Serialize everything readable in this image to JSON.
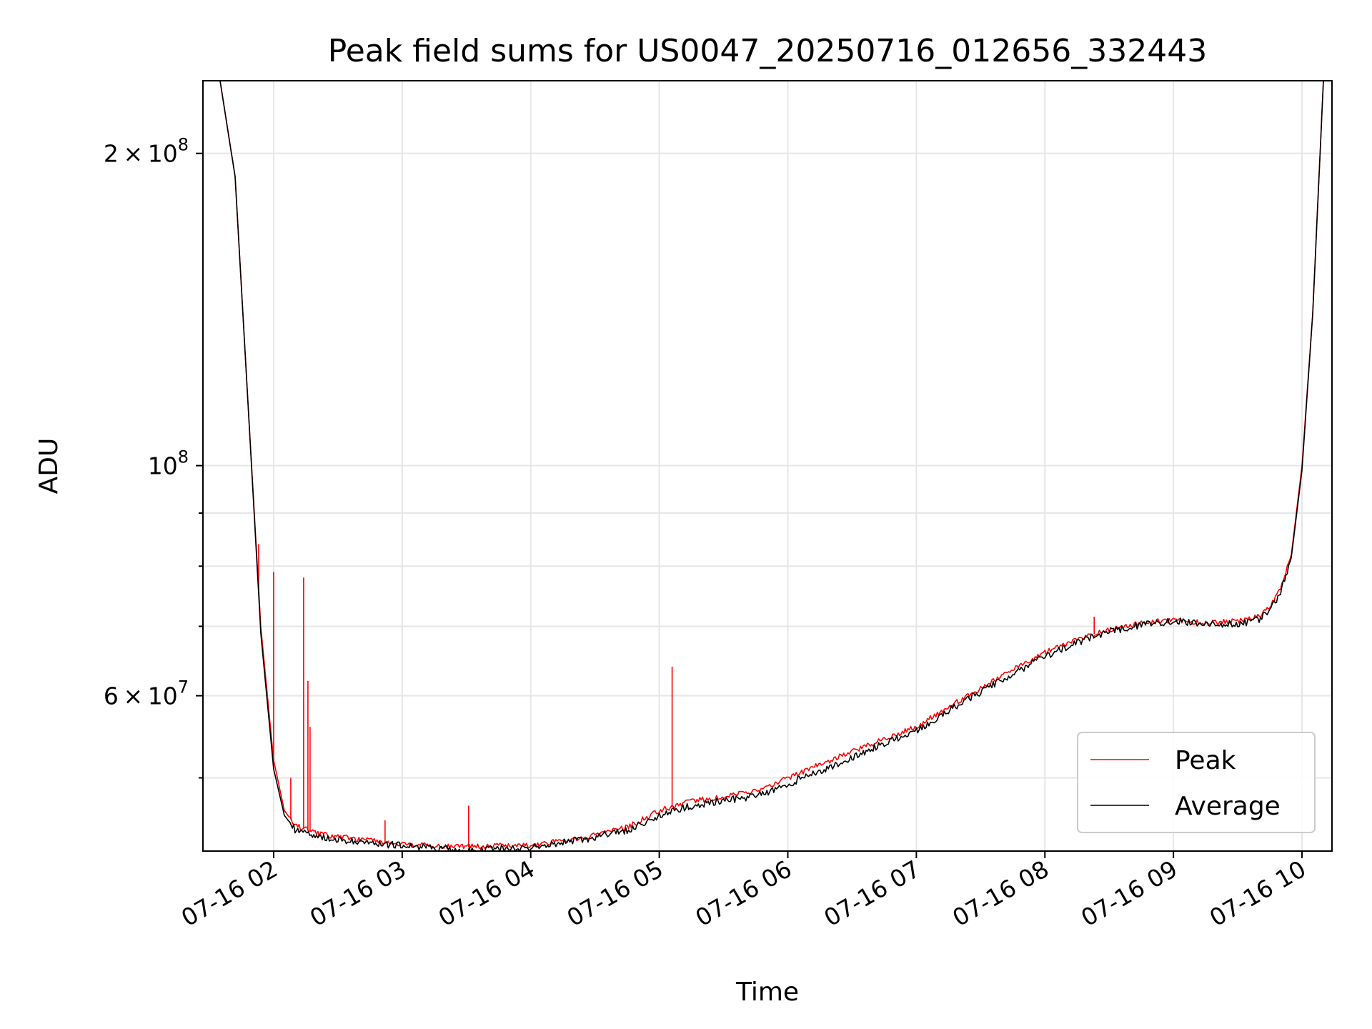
{
  "chart_data": {
    "type": "line",
    "title": "Peak field sums for US0047_20250716_012656_332443",
    "xlabel": "Time",
    "ylabel": "ADU",
    "yscale": "log",
    "grid": true,
    "legend_position": "bottom-right",
    "xlim": [
      "2025-07-16 01:27",
      "2025-07-16 10:14"
    ],
    "ylim": [
      42500000,
      235000000
    ],
    "x_ticks": [
      {
        "value": "2025-07-16 02:00",
        "label": "07-16 02"
      },
      {
        "value": "2025-07-16 03:00",
        "label": "07-16 03"
      },
      {
        "value": "2025-07-16 04:00",
        "label": "07-16 04"
      },
      {
        "value": "2025-07-16 05:00",
        "label": "07-16 05"
      },
      {
        "value": "2025-07-16 06:00",
        "label": "07-16 06"
      },
      {
        "value": "2025-07-16 07:00",
        "label": "07-16 07"
      },
      {
        "value": "2025-07-16 08:00",
        "label": "07-16 08"
      },
      {
        "value": "2025-07-16 09:00",
        "label": "07-16 09"
      },
      {
        "value": "2025-07-16 10:00",
        "label": "07-16 10"
      }
    ],
    "y_ticks": [
      {
        "value": 200000000,
        "mantissa": "2",
        "exponent": "8"
      },
      {
        "value": 100000000,
        "mantissa": "",
        "exponent": "8"
      },
      {
        "value": 60000000,
        "mantissa": "6",
        "exponent": "7"
      }
    ],
    "y_minor_ticks": [
      50000000,
      70000000,
      80000000,
      90000000
    ],
    "series": [
      {
        "name": "Peak",
        "color": "#ff0000",
        "x": [
          "2025-07-16 01:27",
          "2025-07-16 01:35",
          "2025-07-16 01:42",
          "2025-07-16 01:48",
          "2025-07-16 01:54",
          "2025-07-16 02:00",
          "2025-07-16 02:05",
          "2025-07-16 02:10",
          "2025-07-16 02:15",
          "2025-07-16 02:20",
          "2025-07-16 02:30",
          "2025-07-16 02:45",
          "2025-07-16 03:00",
          "2025-07-16 03:15",
          "2025-07-16 03:30",
          "2025-07-16 03:45",
          "2025-07-16 04:00",
          "2025-07-16 04:15",
          "2025-07-16 04:30",
          "2025-07-16 04:45",
          "2025-07-16 05:00",
          "2025-07-16 05:15",
          "2025-07-16 05:30",
          "2025-07-16 05:45",
          "2025-07-16 06:00",
          "2025-07-16 06:15",
          "2025-07-16 06:30",
          "2025-07-16 06:45",
          "2025-07-16 07:00",
          "2025-07-16 07:15",
          "2025-07-16 07:30",
          "2025-07-16 07:45",
          "2025-07-16 08:00",
          "2025-07-16 08:15",
          "2025-07-16 08:30",
          "2025-07-16 08:45",
          "2025-07-16 09:00",
          "2025-07-16 09:15",
          "2025-07-16 09:30",
          "2025-07-16 09:40",
          "2025-07-16 09:45",
          "2025-07-16 09:50",
          "2025-07-16 09:55",
          "2025-07-16 10:00",
          "2025-07-16 10:05",
          "2025-07-16 10:10",
          "2025-07-16 10:14"
        ],
        "y": [
          235000000,
          235000000,
          190000000,
          115000000,
          70000000,
          52000000,
          46500000,
          45000000,
          44600000,
          44200000,
          43900000,
          43500000,
          43200000,
          43000000,
          42900000,
          43000000,
          43000000,
          43500000,
          44000000,
          44800000,
          46500000,
          47500000,
          48000000,
          48500000,
          50000000,
          51500000,
          53000000,
          54500000,
          56000000,
          58500000,
          61000000,
          63500000,
          66000000,
          68000000,
          69500000,
          70500000,
          71000000,
          70500000,
          70800000,
          71500000,
          73000000,
          76000000,
          82000000,
          100000000,
          140000000,
          235000000,
          235000000
        ],
        "spikes": [
          {
            "x": "2025-07-16 01:53",
            "y": 84000000
          },
          {
            "x": "2025-07-16 02:00",
            "y": 79000000
          },
          {
            "x": "2025-07-16 02:08",
            "y": 50000000
          },
          {
            "x": "2025-07-16 02:14",
            "y": 78000000
          },
          {
            "x": "2025-07-16 02:16",
            "y": 62000000
          },
          {
            "x": "2025-07-16 02:17",
            "y": 56000000
          },
          {
            "x": "2025-07-16 02:52",
            "y": 45500000
          },
          {
            "x": "2025-07-16 03:31",
            "y": 47000000
          },
          {
            "x": "2025-07-16 05:06",
            "y": 64000000
          },
          {
            "x": "2025-07-16 08:23",
            "y": 71500000
          }
        ]
      },
      {
        "name": "Average",
        "color": "#000000",
        "x": [
          "2025-07-16 01:27",
          "2025-07-16 01:35",
          "2025-07-16 01:42",
          "2025-07-16 01:48",
          "2025-07-16 01:54",
          "2025-07-16 02:00",
          "2025-07-16 02:05",
          "2025-07-16 02:10",
          "2025-07-16 02:15",
          "2025-07-16 02:20",
          "2025-07-16 02:30",
          "2025-07-16 02:45",
          "2025-07-16 03:00",
          "2025-07-16 03:15",
          "2025-07-16 03:30",
          "2025-07-16 03:45",
          "2025-07-16 04:00",
          "2025-07-16 04:15",
          "2025-07-16 04:30",
          "2025-07-16 04:45",
          "2025-07-16 05:00",
          "2025-07-16 05:15",
          "2025-07-16 05:30",
          "2025-07-16 05:45",
          "2025-07-16 06:00",
          "2025-07-16 06:15",
          "2025-07-16 06:30",
          "2025-07-16 06:45",
          "2025-07-16 07:00",
          "2025-07-16 07:15",
          "2025-07-16 07:30",
          "2025-07-16 07:45",
          "2025-07-16 08:00",
          "2025-07-16 08:15",
          "2025-07-16 08:30",
          "2025-07-16 08:45",
          "2025-07-16 09:00",
          "2025-07-16 09:15",
          "2025-07-16 09:30",
          "2025-07-16 09:40",
          "2025-07-16 09:45",
          "2025-07-16 09:50",
          "2025-07-16 09:55",
          "2025-07-16 10:00",
          "2025-07-16 10:05",
          "2025-07-16 10:10",
          "2025-07-16 10:14"
        ],
        "y": [
          235000000,
          235000000,
          190000000,
          115000000,
          69000000,
          51000000,
          46000000,
          44600000,
          44200000,
          43900000,
          43600000,
          43300000,
          43000000,
          42800000,
          42600000,
          42700000,
          42800000,
          43300000,
          43800000,
          44500000,
          46000000,
          47000000,
          47500000,
          48000000,
          49300000,
          50800000,
          52300000,
          54000000,
          55500000,
          58000000,
          60500000,
          63000000,
          65500000,
          67500000,
          69200000,
          70200000,
          70800000,
          70300000,
          70400000,
          71000000,
          72500000,
          75500000,
          81500000,
          99000000,
          140000000,
          235000000,
          235000000
        ]
      }
    ]
  }
}
